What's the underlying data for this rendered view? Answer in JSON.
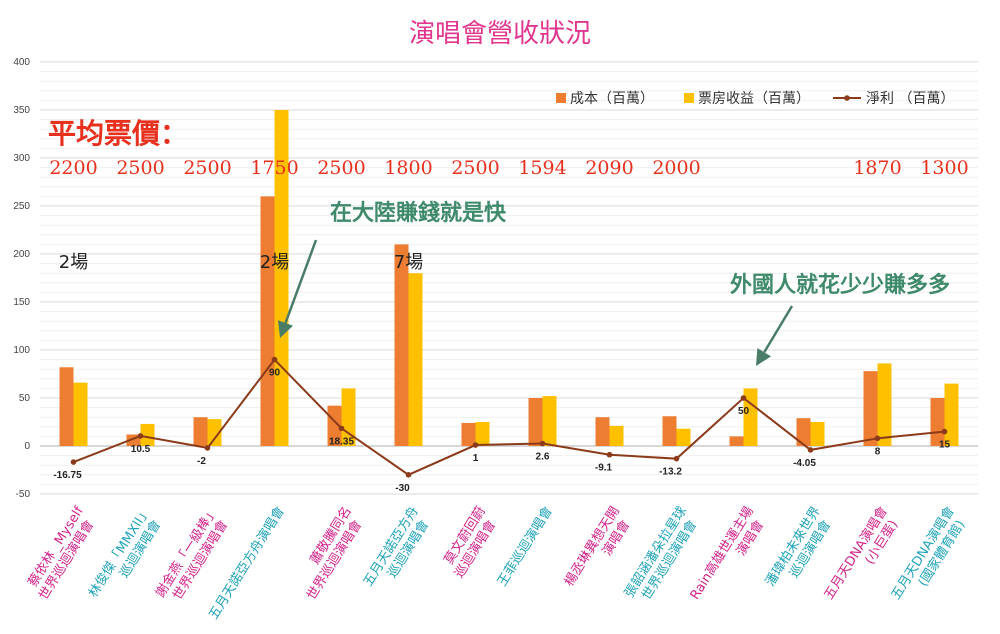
{
  "chart_data": {
    "type": "bar",
    "title": "演唱會營收狀況",
    "ylim": [
      -50,
      400
    ],
    "yticks": [
      -50,
      0,
      50,
      100,
      150,
      200,
      250,
      300,
      350,
      400
    ],
    "grid": true,
    "legend_position": "top-right",
    "categories": [
      {
        "line1": "蔡依林 _Myself",
        "line2": "世界巡迴演唱會",
        "color": "#d2238a"
      },
      {
        "line1": "林俊傑「MMXII」",
        "line2": "巡迴演唱會",
        "color": "#1fa3b8"
      },
      {
        "line1": "謝金燕「一級棒」",
        "line2": "世界巡迴演唱會",
        "color": "#d2238a"
      },
      {
        "line1": "五月天諾亞方舟演唱會",
        "line2": "",
        "color": "#1fa3b8"
      },
      {
        "line1": "蕭敬騰同名",
        "line2": "世界巡迴演唱會",
        "color": "#d2238a"
      },
      {
        "line1": "五月天諾亞方舟",
        "line2": "巡迴演唱會",
        "color": "#1fa3b8"
      },
      {
        "line1": "莫文蔚回蔚",
        "line2": "巡迴演唱會",
        "color": "#d2238a"
      },
      {
        "line1": "王菲巡迴演唱會",
        "line2": "",
        "color": "#1fa3b8"
      },
      {
        "line1": "楊丞琳異想天開",
        "line2": "演唱會",
        "color": "#d2238a"
      },
      {
        "line1": "張韶涵潘朵拉星球",
        "line2": "世界巡迴演唱會",
        "color": "#1fa3b8"
      },
      {
        "line1": "Rain高雄世運主場",
        "line2": "演唱會",
        "color": "#d2238a"
      },
      {
        "line1": "潘瑋柏未來世界",
        "line2": "巡迴演唱會",
        "color": "#1fa3b8"
      },
      {
        "line1": "五月天DNA演唱會",
        "line2": "(小巨蛋)",
        "color": "#d2238a"
      },
      {
        "line1": "五月天DNA演唱會",
        "line2": "(國家體育館)",
        "color": "#1fa3b8"
      }
    ],
    "series": [
      {
        "name": "成本（百萬）",
        "kind": "bar",
        "color": "#ed7d31",
        "values": [
          82,
          12,
          30,
          260,
          42,
          210,
          24,
          50,
          30,
          31,
          10,
          29,
          78,
          50
        ]
      },
      {
        "name": "票房收益（百萬）",
        "kind": "bar",
        "color": "#ffc000",
        "values": [
          66,
          23,
          28,
          350,
          60,
          180,
          25,
          52,
          21,
          18,
          60,
          25,
          86,
          65
        ]
      },
      {
        "name": "淨利 （百萬）",
        "kind": "line",
        "color": "#8b3a1a",
        "values": [
          -16.75,
          10.5,
          -2,
          90,
          18.35,
          -30,
          1,
          2.6,
          -9.1,
          -13.2,
          50,
          -4.05,
          8,
          15
        ],
        "labels": [
          "-16.75",
          "10.5",
          "-2",
          "90",
          "18.35",
          "-30",
          "1",
          "2.6",
          "-9.1",
          "-13.2",
          "50",
          "-4.05",
          "8",
          "15"
        ]
      }
    ],
    "avg_price_title": "平均票價：",
    "avg_prices": [
      "2200",
      "2500",
      "2500",
      "1750",
      "2500",
      "1800",
      "2500",
      "1594",
      "2090",
      "2000",
      "",
      "",
      "1870",
      "1300"
    ],
    "show_counts": [
      {
        "index": 0,
        "text": "2場"
      },
      {
        "index": 3,
        "text": "2場"
      },
      {
        "index": 5,
        "text": "7場"
      }
    ],
    "annotations": [
      {
        "text": "在大陸賺錢就是快",
        "target_index": 3
      },
      {
        "text": "外國人就花少少賺多多",
        "target_index": 10
      }
    ]
  }
}
